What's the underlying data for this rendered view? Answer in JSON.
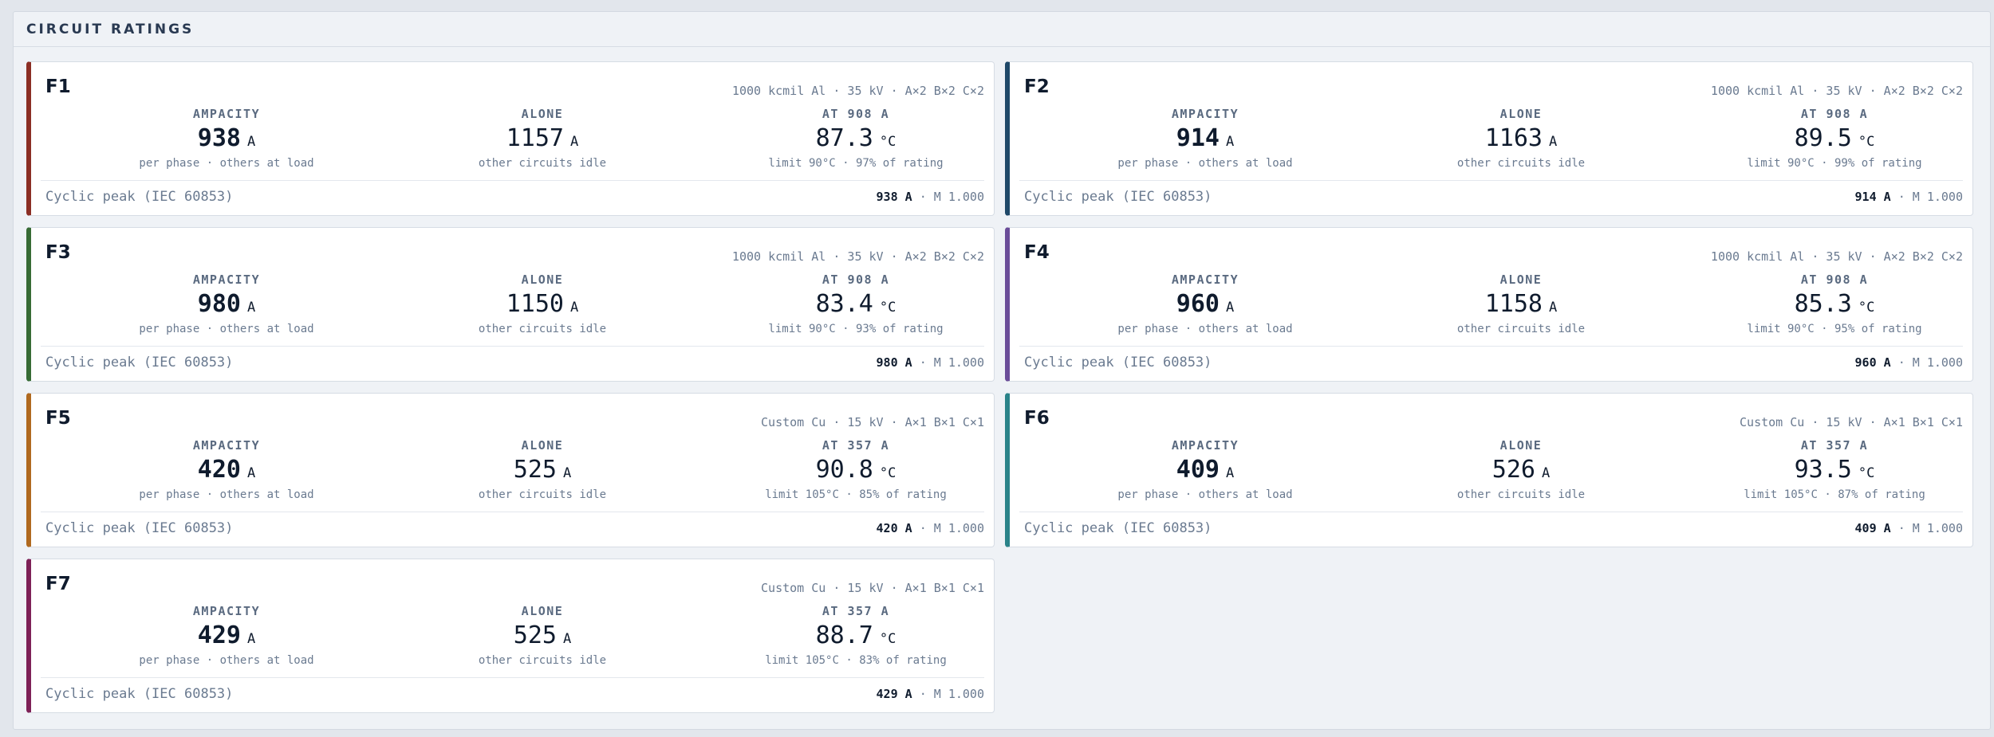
{
  "panel": {
    "title": "CIRCUIT RATINGS"
  },
  "labels": {
    "ampacity": "AMPACITY",
    "alone": "ALONE",
    "amp_unit": "A",
    "temp_unit": "°C",
    "ampacity_sub": "per phase · others at load",
    "alone_sub": "other circuits idle",
    "footer_label": "Cyclic peak (IEC 60853)",
    "multiplier": "· M 1.000"
  },
  "circuits": [
    {
      "name": "F1",
      "accent": "#8b2e24",
      "spec": "1000 kcmil Al · 35 kV · A×2 B×2 C×2",
      "ampacity": "938",
      "alone": "1157",
      "at_label": "AT 908 A",
      "temp": "87.3",
      "temp_sub": "limit 90°C · 97% of rating",
      "peak": "938 A"
    },
    {
      "name": "F2",
      "accent": "#1f4868",
      "spec": "1000 kcmil Al · 35 kV · A×2 B×2 C×2",
      "ampacity": "914",
      "alone": "1163",
      "at_label": "AT 908 A",
      "temp": "89.5",
      "temp_sub": "limit 90°C · 99% of rating",
      "peak": "914 A"
    },
    {
      "name": "F3",
      "accent": "#376b35",
      "spec": "1000 kcmil Al · 35 kV · A×2 B×2 C×2",
      "ampacity": "980",
      "alone": "1150",
      "at_label": "AT 908 A",
      "temp": "83.4",
      "temp_sub": "limit 90°C · 93% of rating",
      "peak": "980 A"
    },
    {
      "name": "F4",
      "accent": "#6a4c98",
      "spec": "1000 kcmil Al · 35 kV · A×2 B×2 C×2",
      "ampacity": "960",
      "alone": "1158",
      "at_label": "AT 908 A",
      "temp": "85.3",
      "temp_sub": "limit 90°C · 95% of rating",
      "peak": "960 A"
    },
    {
      "name": "F5",
      "accent": "#b0691f",
      "spec": "Custom Cu · 15 kV · A×1 B×1 C×1",
      "ampacity": "420",
      "alone": "525",
      "at_label": "AT 357 A",
      "temp": "90.8",
      "temp_sub": "limit 105°C · 85% of rating",
      "peak": "420 A"
    },
    {
      "name": "F6",
      "accent": "#2a8389",
      "spec": "Custom Cu · 15 kV · A×1 B×1 C×1",
      "ampacity": "409",
      "alone": "526",
      "at_label": "AT 357 A",
      "temp": "93.5",
      "temp_sub": "limit 105°C · 87% of rating",
      "peak": "409 A"
    },
    {
      "name": "F7",
      "accent": "#7e2157",
      "spec": "Custom Cu · 15 kV · A×1 B×1 C×1",
      "ampacity": "429",
      "alone": "525",
      "at_label": "AT 357 A",
      "temp": "88.7",
      "temp_sub": "limit 105°C · 83% of rating",
      "peak": "429 A"
    }
  ]
}
